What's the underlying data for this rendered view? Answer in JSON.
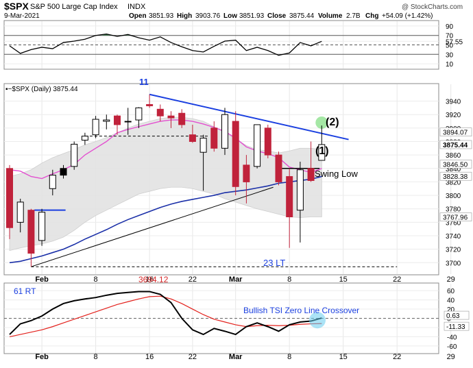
{
  "header": {
    "symbol": "$SPX",
    "name": "S&P 500 Large Cap Index",
    "exchange": "INDX",
    "watermark": "@ StockCharts.com",
    "date": "9-Mar-2021",
    "open_label": "Open",
    "open": "3851.93",
    "high_label": "High",
    "high": "3903.76",
    "low_label": "Low",
    "low": "3851.93",
    "close_label": "Close",
    "close": "3875.44",
    "volume_label": "Volume",
    "volume": "2.7B",
    "chg_label": "Chg",
    "chg": "+54.09 (+1.42%)"
  },
  "colors": {
    "up": "#000000",
    "down": "#c0223b",
    "black_body": "#000000",
    "ma_short": "#e34fd0",
    "ma_long": "#1a2fa8",
    "band": "#e3e3e3",
    "trendline": "#1a3fe0",
    "tsi": "#000000",
    "tsi_signal": "#e3201b",
    "annot_blue": "#1a3fe0",
    "annot_red": "#d62728",
    "highlight": "#5bd35b",
    "highlight_blue": "#66ccee",
    "rsi_fill": "#3f7d4f"
  },
  "chart_data": {
    "type": "candlestick",
    "price_axis": {
      "min": 3683,
      "max": 3965,
      "ticks": [
        "3940",
        "3920",
        "3900",
        "3880",
        "3860",
        "3840",
        "3820",
        "3800",
        "3780",
        "3760",
        "3740",
        "3720",
        "3700"
      ],
      "tick_values": [
        3940,
        3920,
        3900,
        3880,
        3860,
        3840,
        3820,
        3800,
        3780,
        3760,
        3740,
        3720,
        3700
      ],
      "price_tags": [
        {
          "label": "3894.07",
          "value": 3894.07
        },
        {
          "label": "3875.44",
          "value": 3875.44
        },
        {
          "label": "3846.50",
          "value": 3846.5
        },
        {
          "label": "3828.38",
          "value": 3828.38
        },
        {
          "label": "3767.96",
          "value": 3767.96
        }
      ]
    },
    "x_labels": [
      {
        "label": "Feb",
        "index": 3
      },
      {
        "label": "8",
        "index": 8
      },
      {
        "label": "16",
        "index": 13
      },
      {
        "label": "22",
        "index": 17
      },
      {
        "label": "Mar",
        "index": 21
      },
      {
        "label": "8",
        "index": 26
      },
      {
        "label": "15",
        "index": 31
      },
      {
        "label": "22",
        "index": 36
      },
      {
        "label": "29",
        "index": 41
      }
    ],
    "candles": [
      {
        "o": 3840,
        "h": 3845,
        "l": 3735,
        "c": 3752,
        "col": "down"
      },
      {
        "o": 3760,
        "h": 3795,
        "l": 3745,
        "c": 3790,
        "col": "up"
      },
      {
        "o": 3778,
        "h": 3780,
        "l": 3694,
        "c": 3714,
        "col": "down"
      },
      {
        "o": 3733,
        "h": 3780,
        "l": 3725,
        "c": 3775,
        "col": "up"
      },
      {
        "o": 3810,
        "h": 3838,
        "l": 3800,
        "c": 3830,
        "col": "up"
      },
      {
        "o": 3830,
        "h": 3845,
        "l": 3825,
        "c": 3840,
        "col": "black"
      },
      {
        "o": 3843,
        "h": 3880,
        "l": 3838,
        "c": 3876,
        "col": "up"
      },
      {
        "o": 3882,
        "h": 3893,
        "l": 3875,
        "c": 3888,
        "col": "up"
      },
      {
        "o": 3890,
        "h": 3918,
        "l": 3885,
        "c": 3913,
        "col": "up"
      },
      {
        "o": 3910,
        "h": 3920,
        "l": 3898,
        "c": 3912,
        "col": "up"
      },
      {
        "o": 3905,
        "h": 3920,
        "l": 3890,
        "c": 3918,
        "col": "down"
      },
      {
        "o": 3910,
        "h": 3930,
        "l": 3890,
        "c": 3910,
        "col": "up"
      },
      {
        "o": 3912,
        "h": 3931,
        "l": 3900,
        "c": 3930,
        "col": "up"
      },
      {
        "o": 3935,
        "h": 3950,
        "l": 3930,
        "c": 3933,
        "col": "down"
      },
      {
        "o": 3928,
        "h": 3935,
        "l": 3910,
        "c": 3918,
        "col": "down"
      },
      {
        "o": 3915,
        "h": 3925,
        "l": 3900,
        "c": 3918,
        "col": "down"
      },
      {
        "o": 3922,
        "h": 3928,
        "l": 3900,
        "c": 3905,
        "col": "down"
      },
      {
        "o": 3890,
        "h": 3905,
        "l": 3878,
        "c": 3880,
        "col": "down"
      },
      {
        "o": 3864,
        "h": 3890,
        "l": 3807,
        "c": 3885,
        "col": "up"
      },
      {
        "o": 3900,
        "h": 3910,
        "l": 3865,
        "c": 3870,
        "col": "down"
      },
      {
        "o": 3920,
        "h": 3930,
        "l": 3860,
        "c": 3870,
        "col": "up"
      },
      {
        "o": 3910,
        "h": 3925,
        "l": 3800,
        "c": 3813,
        "col": "down"
      },
      {
        "o": 3845,
        "h": 3860,
        "l": 3788,
        "c": 3820,
        "col": "down"
      },
      {
        "o": 3843,
        "h": 3905,
        "l": 3840,
        "c": 3905,
        "col": "up"
      },
      {
        "o": 3900,
        "h": 3905,
        "l": 3855,
        "c": 3860,
        "col": "down"
      },
      {
        "o": 3860,
        "h": 3865,
        "l": 3815,
        "c": 3820,
        "col": "down"
      },
      {
        "o": 3828,
        "h": 3840,
        "l": 3722,
        "c": 3768,
        "col": "down"
      },
      {
        "o": 3778,
        "h": 3850,
        "l": 3730,
        "c": 3838,
        "col": "up"
      },
      {
        "o": 3840,
        "h": 3880,
        "l": 3820,
        "c": 3822,
        "col": "down"
      },
      {
        "o": 3852,
        "h": 3903.76,
        "l": 3851.93,
        "c": 3875.44,
        "col": "up"
      }
    ],
    "ma_short": [
      3838,
      3836,
      3828,
      3825,
      3832,
      3838,
      3846,
      3860,
      3870,
      3880,
      3893,
      3898,
      3902,
      3906,
      3910,
      3912,
      3912,
      3910,
      3906,
      3901,
      3895,
      3885,
      3872,
      3866,
      3862,
      3856,
      3842,
      3838,
      3834,
      3840
    ],
    "ma_long": [
      3700,
      3702,
      3706,
      3710,
      3715,
      3720,
      3727,
      3735,
      3742,
      3749,
      3757,
      3764,
      3770,
      3776,
      3782,
      3787,
      3791,
      3794,
      3797,
      3800,
      3804,
      3806,
      3808,
      3811,
      3814,
      3818,
      3820,
      3822,
      3824,
      3828
    ],
    "band_upper": [
      3828,
      3832,
      3838,
      3848,
      3856,
      3862,
      3868,
      3875,
      3880,
      3886,
      3893,
      3900,
      3906,
      3910,
      3914,
      3916,
      3916,
      3914,
      3910,
      3902,
      3893,
      3884,
      3874,
      3868,
      3866,
      3863,
      3866,
      3870,
      3870,
      3868
    ],
    "band_lower": [
      3718,
      3722,
      3725,
      3728,
      3732,
      3738,
      3748,
      3760,
      3770,
      3778,
      3786,
      3794,
      3802,
      3806,
      3810,
      3812,
      3812,
      3810,
      3806,
      3802,
      3795,
      3790,
      3785,
      3780,
      3776,
      3772,
      3768,
      3767,
      3768,
      3768
    ],
    "rsi": {
      "ticks": [
        "90",
        "70",
        "57.55",
        "50",
        "30",
        "10"
      ],
      "tick_values": [
        90,
        70,
        57.55,
        50,
        30,
        10
      ],
      "min": 0,
      "max": 100,
      "values": [
        48,
        32,
        40,
        45,
        42,
        55,
        58,
        62,
        70,
        73,
        68,
        72,
        65,
        60,
        67,
        55,
        46,
        38,
        35,
        47,
        58,
        60,
        38,
        45,
        38,
        28,
        33,
        55,
        48,
        57.55
      ]
    },
    "tsi": {
      "ticks": [
        "60",
        "40",
        "20",
        "0",
        "-20",
        "-40",
        "-60"
      ],
      "tick_values": [
        60,
        40,
        20,
        0,
        -20,
        -40,
        -60
      ],
      "min": -75,
      "max": 75,
      "tags": [
        {
          "label": "0.63",
          "value": 0.63
        },
        {
          "label": "-11.33",
          "value": -11.33
        }
      ],
      "values": [
        -35,
        -12,
        -5,
        5,
        20,
        32,
        38,
        42,
        45,
        50,
        54,
        56,
        58,
        58,
        52,
        34,
        0,
        -25,
        -35,
        -22,
        -28,
        -35,
        -18,
        -10,
        -18,
        -28,
        -14,
        -8,
        -6,
        0.63
      ],
      "signal": [
        -40,
        -35,
        -30,
        -25,
        -18,
        -10,
        -2,
        6,
        14,
        22,
        30,
        36,
        42,
        47,
        48,
        42,
        32,
        20,
        8,
        -2,
        -8,
        -14,
        -18,
        -16,
        -15,
        -16,
        -15,
        -13,
        -12,
        -11.33
      ]
    }
  },
  "annotations": {
    "label_11": "11",
    "label_2": "(2)",
    "label_1": "(1)",
    "swing_low": "Swing Low",
    "label_23lt": "23 LT",
    "label_3694": "3694.12",
    "label_61rt": "61 RT",
    "tsi_text": "Bullish TSI Zero Line Crossover"
  }
}
